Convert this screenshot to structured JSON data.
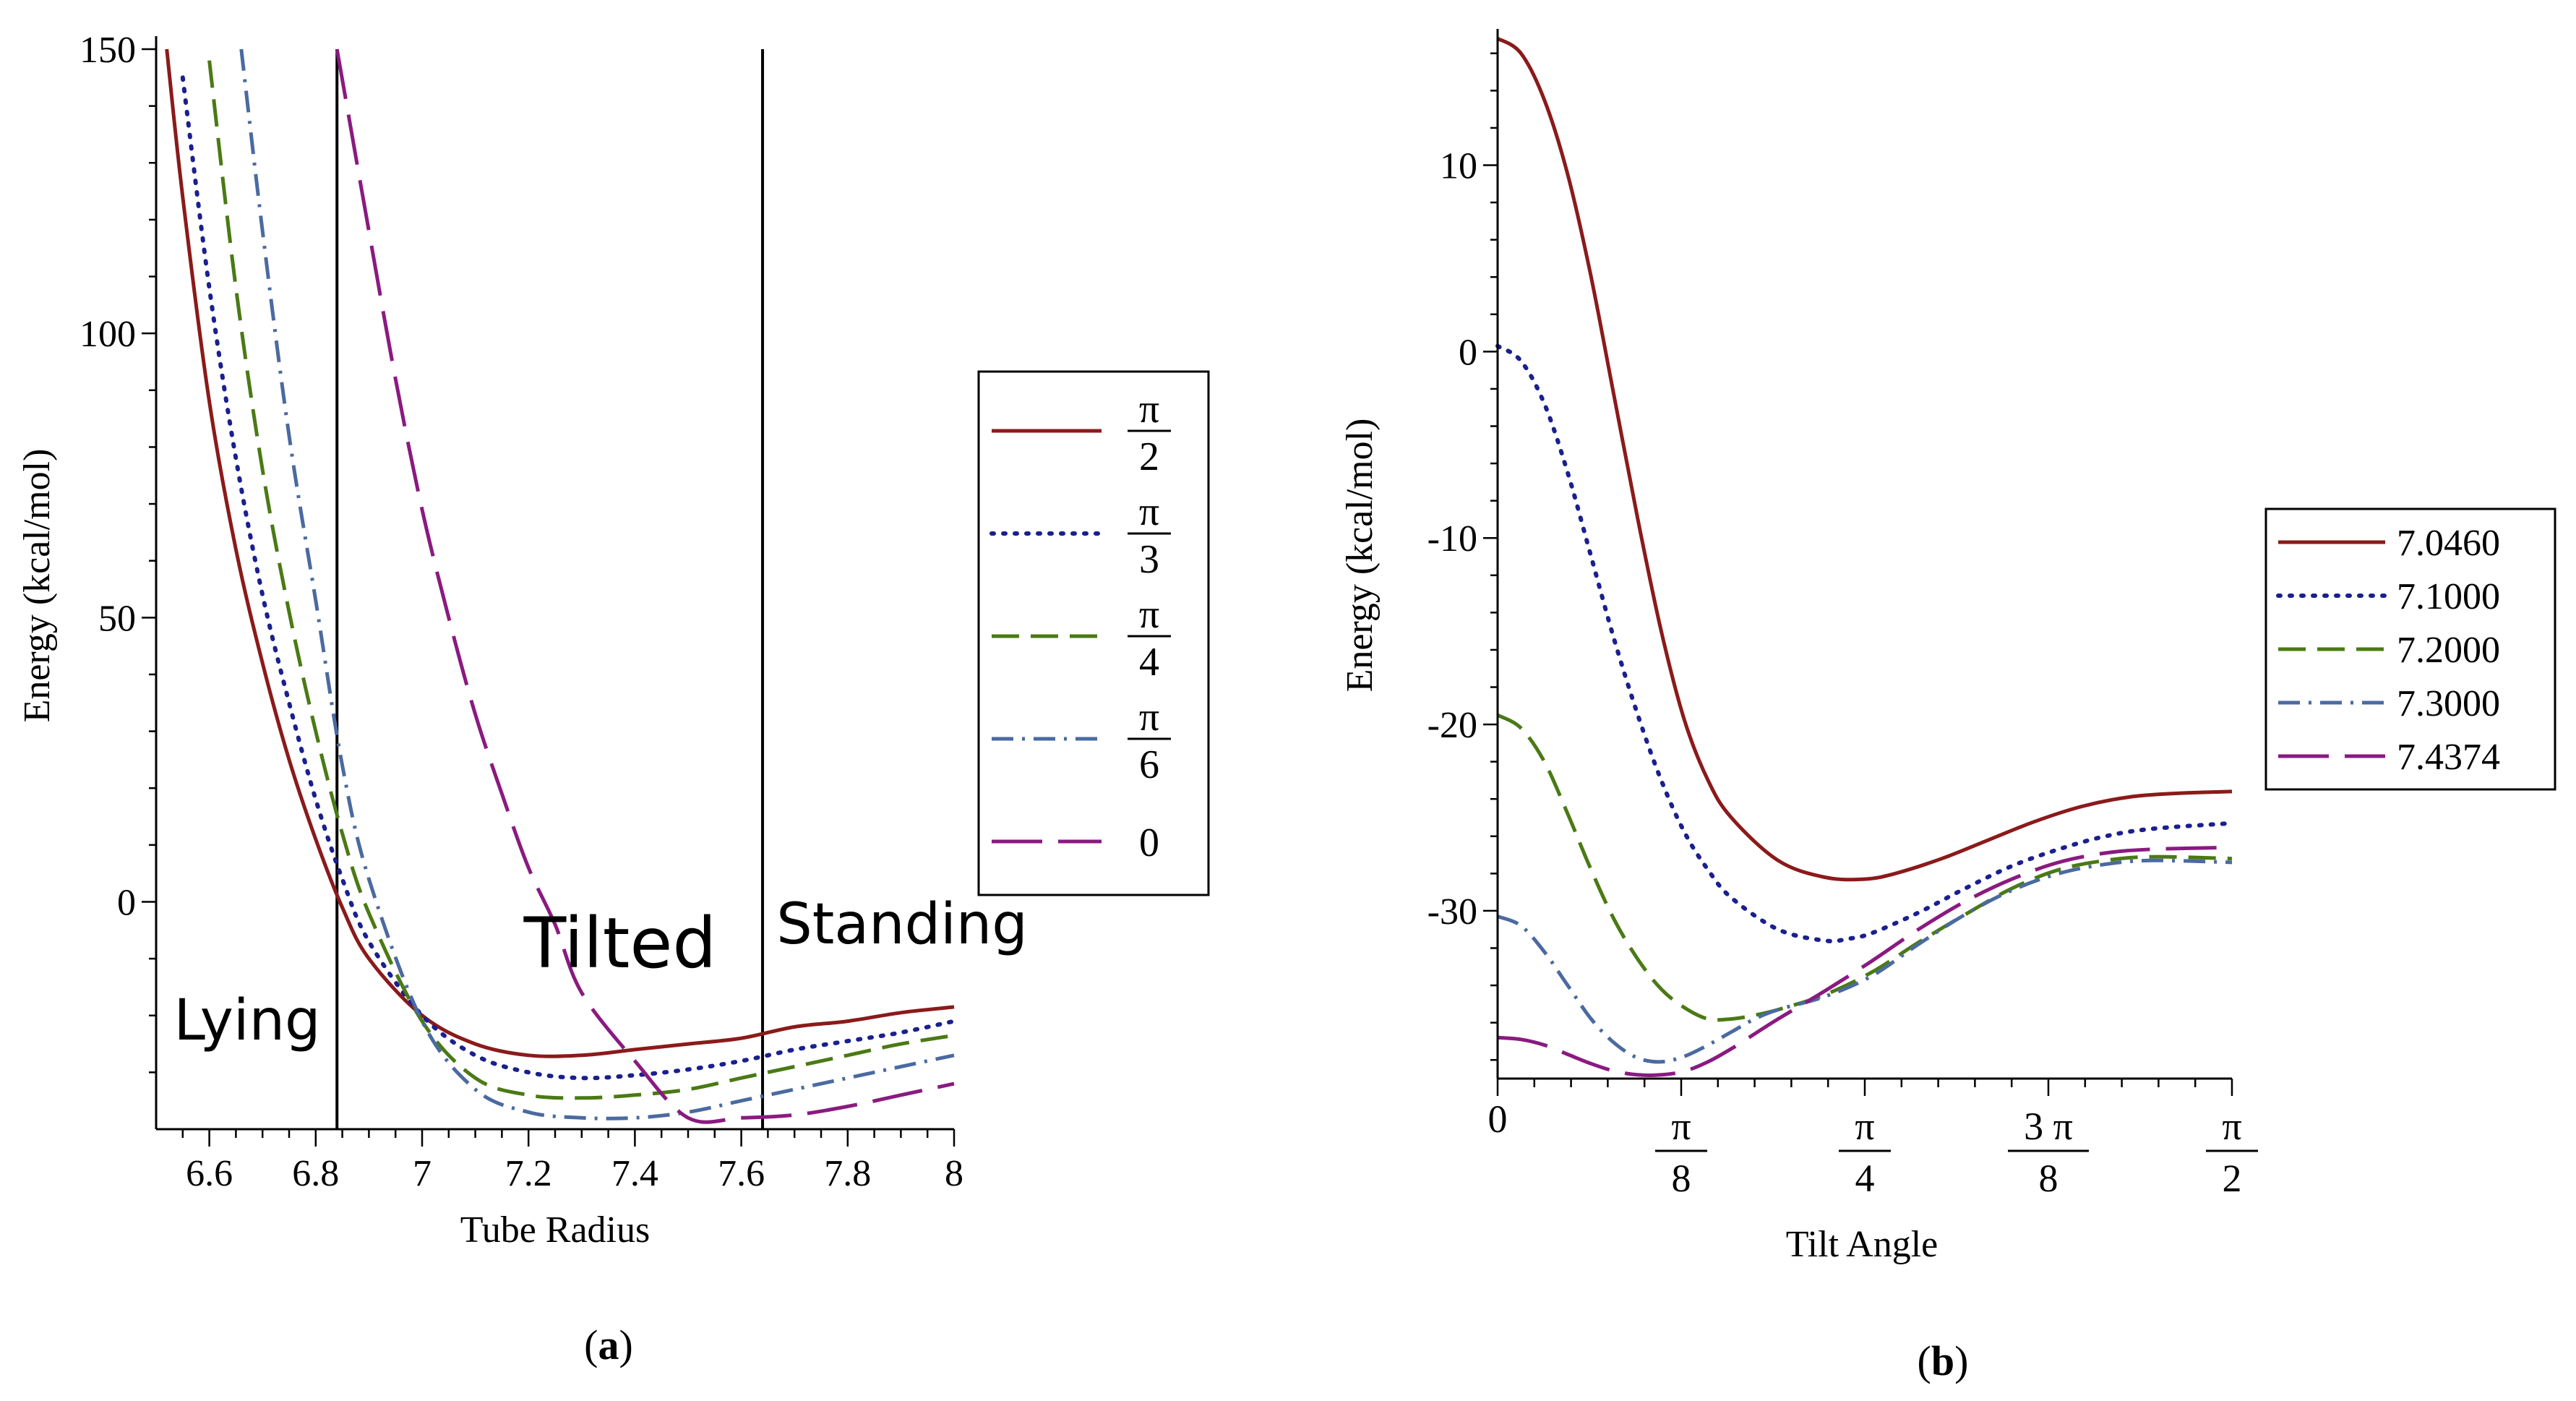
{
  "colors": {
    "red": "#8b1a1a",
    "blue": "#1a1f8f",
    "green": "#4a7a14",
    "slate": "#4a6aa0",
    "purple": "#8a1a80",
    "axis": "#000000"
  },
  "chart_data": [
    {
      "type": "line",
      "panel_label": "a",
      "xlabel": "Tube Radius",
      "ylabel": "Energy (kcal/mol)",
      "xlim": [
        6.5,
        8.0
      ],
      "ylim": [
        -40,
        150
      ],
      "xticks": [
        "6.6",
        "6.8",
        "7",
        "7.2",
        "7.4",
        "7.6",
        "7.8",
        "8"
      ],
      "yticks": [
        "150",
        "100",
        "50",
        "0"
      ],
      "vlines": [
        6.84,
        7.64
      ],
      "region_labels": [
        "Lying",
        "Tilted",
        "Standing"
      ],
      "legend": [
        {
          "num": "π",
          "den": "2",
          "style": "solid",
          "color": "#8b1a1a"
        },
        {
          "num": "π",
          "den": "3",
          "style": "dot",
          "color": "#1a1f8f"
        },
        {
          "num": "π",
          "den": "4",
          "style": "dash",
          "color": "#4a7a14"
        },
        {
          "num": "π",
          "den": "6",
          "style": "dashdot",
          "color": "#4a6aa0"
        },
        {
          "num": "",
          "den": "",
          "text": "0",
          "style": "longdash",
          "color": "#8a1a80"
        }
      ],
      "series": [
        {
          "name": "π/2",
          "style": "solid",
          "color": "#8b1a1a",
          "x": [
            6.52,
            6.55,
            6.6,
            6.65,
            6.7,
            6.75,
            6.8,
            6.85,
            6.9,
            7.0,
            7.1,
            7.2,
            7.3,
            7.4,
            7.5,
            7.6,
            7.7,
            7.8,
            7.9,
            8.0
          ],
          "y": [
            150,
            124,
            88,
            62,
            42,
            25,
            11,
            -1,
            -10,
            -20,
            -25,
            -27,
            -27,
            -26,
            -25,
            -24,
            -22,
            -21,
            -19.5,
            -18.5
          ]
        },
        {
          "name": "π/3",
          "style": "dot",
          "color": "#1a1f8f",
          "x": [
            6.55,
            6.6,
            6.65,
            6.7,
            6.75,
            6.8,
            6.85,
            6.9,
            7.0,
            7.1,
            7.2,
            7.3,
            7.4,
            7.5,
            7.6,
            7.7,
            7.8,
            7.9,
            8.0
          ],
          "y": [
            145,
            108,
            78,
            54,
            35,
            18,
            4,
            -7,
            -20,
            -27,
            -30,
            -31,
            -30.5,
            -29.5,
            -28,
            -26,
            -24.5,
            -23,
            -21
          ]
        },
        {
          "name": "π/4",
          "style": "dash",
          "color": "#4a7a14",
          "x": [
            6.6,
            6.65,
            6.7,
            6.75,
            6.8,
            6.85,
            6.9,
            7.0,
            7.1,
            7.2,
            7.3,
            7.4,
            7.5,
            7.6,
            7.7,
            7.8,
            7.9,
            8.0
          ],
          "y": [
            148,
            108,
            76,
            51,
            30,
            12,
            -2,
            -21,
            -31,
            -34,
            -34.5,
            -34,
            -33,
            -31,
            -29,
            -27,
            -25,
            -23.5
          ]
        },
        {
          "name": "π/6",
          "style": "dashdot",
          "color": "#4a6aa0",
          "x": [
            6.66,
            6.7,
            6.75,
            6.8,
            6.85,
            6.9,
            7.0,
            7.1,
            7.2,
            7.3,
            7.4,
            7.5,
            7.6,
            7.7,
            7.8,
            7.9,
            8.0
          ],
          "y": [
            150,
            118,
            82,
            53,
            24,
            4,
            -21,
            -33,
            -37,
            -38,
            -38,
            -37,
            -35,
            -33,
            -31,
            -29,
            -27
          ]
        },
        {
          "name": "0",
          "style": "longdash",
          "color": "#8a1a80",
          "x": [
            6.84,
            6.9,
            6.95,
            7.0,
            7.05,
            7.1,
            7.15,
            7.2,
            7.25,
            7.3,
            7.4,
            7.5,
            7.6,
            7.7,
            7.8,
            7.9,
            8.0
          ],
          "y": [
            150,
            118,
            92,
            69,
            50,
            33,
            19,
            6,
            -4,
            -16,
            -28,
            -38,
            -38,
            -37.5,
            -36,
            -34,
            -32
          ]
        }
      ]
    },
    {
      "type": "line",
      "panel_label": "b",
      "xlabel": "Tilt Angle",
      "ylabel": "Energy (kcal/mol)",
      "xlim": [
        0,
        1.5708
      ],
      "ylim": [
        -39,
        17
      ],
      "xticks": [
        {
          "value": 0,
          "text": "0"
        },
        {
          "value": 0.3927,
          "num": "π",
          "den": "8"
        },
        {
          "value": 0.7854,
          "num": "π",
          "den": "4"
        },
        {
          "value": 1.1781,
          "num": "3 π",
          "den": "8"
        },
        {
          "value": 1.5708,
          "num": "π",
          "den": "2"
        }
      ],
      "yticks": [
        "10",
        "0",
        "-10",
        "-20",
        "-30"
      ],
      "legend": [
        {
          "label": "7.0460",
          "style": "solid",
          "color": "#8b1a1a"
        },
        {
          "label": "7.1000",
          "style": "dot",
          "color": "#1a1f8f"
        },
        {
          "label": "7.2000",
          "style": "dash",
          "color": "#4a7a14"
        },
        {
          "label": "7.3000",
          "style": "dashdot",
          "color": "#4a6aa0"
        },
        {
          "label": "7.4374",
          "style": "longdash",
          "color": "#8a1a80"
        }
      ],
      "series": [
        {
          "name": "7.0460",
          "style": "solid",
          "color": "#8b1a1a",
          "x": [
            0,
            0.05,
            0.1,
            0.15,
            0.2,
            0.25,
            0.3,
            0.35,
            0.4,
            0.45,
            0.5,
            0.6,
            0.7,
            0.785,
            0.85,
            0.95,
            1.05,
            1.15,
            1.25,
            1.35,
            1.45,
            1.5708
          ],
          "y": [
            16.8,
            16,
            13.5,
            9.5,
            4,
            -2.5,
            -9,
            -15,
            -19.8,
            -23,
            -25,
            -27.3,
            -28.2,
            -28.3,
            -28,
            -27.2,
            -26.2,
            -25.2,
            -24.4,
            -23.9,
            -23.7,
            -23.6
          ]
        },
        {
          "name": "7.1000",
          "style": "dot",
          "color": "#1a1f8f",
          "x": [
            0,
            0.05,
            0.1,
            0.15,
            0.2,
            0.25,
            0.3,
            0.35,
            0.4,
            0.45,
            0.5,
            0.6,
            0.7,
            0.75,
            0.8,
            0.9,
            1.0,
            1.1,
            1.2,
            1.3,
            1.4,
            1.5708
          ],
          "y": [
            0.3,
            -0.5,
            -2.8,
            -6.5,
            -11,
            -15.5,
            -19.5,
            -23,
            -25.8,
            -27.8,
            -29.3,
            -31,
            -31.6,
            -31.5,
            -31.2,
            -30.1,
            -28.8,
            -27.6,
            -26.7,
            -26,
            -25.6,
            -25.3
          ]
        },
        {
          "name": "7.2000",
          "style": "dash",
          "color": "#4a7a14",
          "x": [
            0,
            0.05,
            0.1,
            0.15,
            0.2,
            0.25,
            0.3,
            0.35,
            0.4,
            0.45,
            0.5,
            0.55,
            0.6,
            0.7,
            0.8,
            0.9,
            1.0,
            1.1,
            1.2,
            1.3,
            1.4,
            1.5708
          ],
          "y": [
            -19.5,
            -20.2,
            -22,
            -24.8,
            -27.8,
            -30.5,
            -32.6,
            -34.2,
            -35.2,
            -35.8,
            -35.8,
            -35.6,
            -35.3,
            -34.5,
            -33.3,
            -31.7,
            -30.2,
            -28.8,
            -27.8,
            -27.3,
            -27.1,
            -27.2
          ]
        },
        {
          "name": "7.3000",
          "style": "dashdot",
          "color": "#4a6aa0",
          "x": [
            0,
            0.05,
            0.1,
            0.15,
            0.2,
            0.25,
            0.3,
            0.35,
            0.4,
            0.45,
            0.5,
            0.55,
            0.6,
            0.7,
            0.8,
            0.9,
            1.0,
            1.1,
            1.2,
            1.3,
            1.4,
            1.5708
          ],
          "y": [
            -30.3,
            -30.8,
            -32.2,
            -34,
            -35.8,
            -37.1,
            -37.9,
            -38.1,
            -37.8,
            -37.2,
            -36.5,
            -35.8,
            -35.3,
            -34.6,
            -33.5,
            -31.8,
            -30.2,
            -28.9,
            -28,
            -27.5,
            -27.3,
            -27.4
          ]
        },
        {
          "name": "7.4374",
          "style": "longdash",
          "color": "#8a1a80",
          "x": [
            0,
            0.05,
            0.1,
            0.15,
            0.2,
            0.25,
            0.3,
            0.35,
            0.4,
            0.45,
            0.5,
            0.55,
            0.6,
            0.7,
            0.8,
            0.9,
            1.0,
            1.1,
            1.2,
            1.3,
            1.4,
            1.5708
          ],
          "y": [
            -36.8,
            -36.9,
            -37.2,
            -37.7,
            -38.2,
            -38.6,
            -38.8,
            -38.8,
            -38.6,
            -38.1,
            -37.4,
            -36.6,
            -35.8,
            -34.3,
            -32.7,
            -31,
            -29.5,
            -28.3,
            -27.4,
            -26.9,
            -26.7,
            -26.6
          ]
        }
      ]
    }
  ]
}
